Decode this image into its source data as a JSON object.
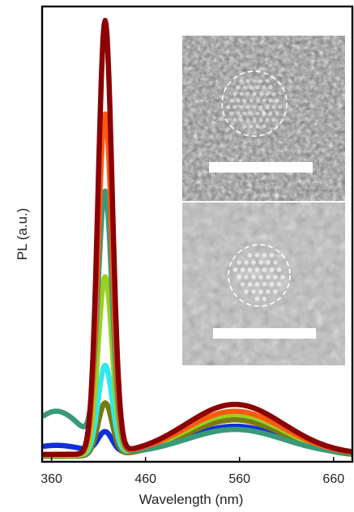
{
  "chart_data": {
    "type": "line",
    "xlabel": "Wavelength (nm)",
    "ylabel": "PL (a.u.)",
    "xlim": [
      350,
      680
    ],
    "ylim": [
      0,
      1.0
    ],
    "xticks": [
      360,
      460,
      560,
      660
    ],
    "y_tick_labels_shown": false,
    "grid": false,
    "legend": "none",
    "insets": [
      "TEM image (top)",
      "TEM image (bottom)"
    ],
    "series": [
      {
        "color": "#1030d8",
        "peak": 0.045,
        "hump": 0.062,
        "bgstart": 0.02,
        "bg": 0.016
      },
      {
        "color": "#7a7a10",
        "peak": 0.115,
        "hump": 0.08,
        "bgstart": 0.0,
        "bg": 0.012
      },
      {
        "color": "#30e8ee",
        "peak": 0.195,
        "hump": 0.09,
        "bgstart": 0.0,
        "bg": 0.014
      },
      {
        "color": "#9ad020",
        "peak": 0.39,
        "hump": 0.09,
        "bgstart": 0.0,
        "bg": 0.014
      },
      {
        "color": "#3a9a78",
        "peak": 0.56,
        "hump": 0.055,
        "bgstart": 0.095,
        "bg": 0.016
      },
      {
        "color": "#ff5a10",
        "peak": 0.745,
        "hump": 0.095,
        "bgstart": 0.0,
        "bg": 0.016
      },
      {
        "color": "#8b0000",
        "peak": 0.95,
        "hump": 0.11,
        "bgstart": 0.0,
        "bg": 0.016
      }
    ]
  }
}
